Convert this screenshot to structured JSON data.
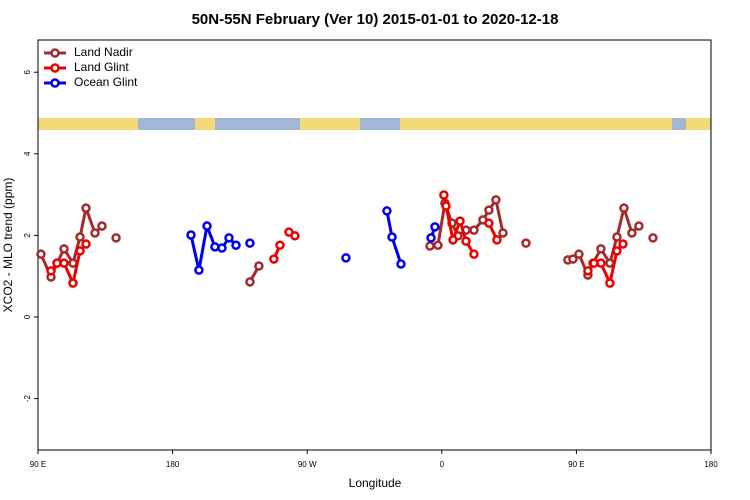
{
  "chart_data": {
    "type": "line",
    "title": "50N-55N February (Ver 10)   2015-01-01 to 2020-12-18",
    "x_label": "Longitude",
    "y_label": "XCO2 - MLO trend (ppm)",
    "xlim": [
      90,
      540
    ],
    "xticks": [
      {
        "value": 90,
        "label": "90 E"
      },
      180,
      {
        "value": 270,
        "label": "90 W"
      },
      {
        "value": 360,
        "label": "0"
      },
      {
        "value": 450,
        "label": "90 E"
      },
      {
        "value": 540,
        "label": "180"
      }
    ],
    "ylim": [
      -3.26,
      6.79
    ],
    "yticks": [
      -2,
      0,
      2,
      4,
      6
    ],
    "legend": "top-left",
    "series": [
      {
        "name": "Land Nadir",
        "color": "#a52a2a",
        "x": [
          92.0,
          98.7,
          102.7,
          107.4,
          113.4,
          118.1,
          122.1,
          128.1,
          132.8,
          null,
          142.2,
          null,
          231.7,
          237.7,
          null,
          352.1,
          357.4,
          362.1,
          366.8,
          370.8,
          376.2,
          381.5,
          387.5,
          391.5,
          396.2,
          400.9,
          null,
          416.3,
          null,
          444.3,
          447.7,
          451.7,
          457.7,
          461.1,
          466.4,
          472.4,
          477.1,
          481.8,
          487.1,
          491.8,
          null,
          501.2
        ],
        "values": [
          1.54,
          0.98,
          1.32,
          1.67,
          1.32,
          1.96,
          2.67,
          2.06,
          2.23,
          null,
          1.94,
          null,
          0.86,
          1.25,
          null,
          1.74,
          1.76,
          2.79,
          2.3,
          1.99,
          2.13,
          2.13,
          2.38,
          2.62,
          2.87,
          2.06,
          null,
          1.81,
          null,
          1.4,
          1.42,
          1.54,
          1.03,
          1.32,
          1.67,
          1.32,
          1.96,
          2.67,
          2.06,
          2.23,
          null,
          1.94
        ]
      },
      {
        "name": "Land Glint",
        "color": "#ee0000",
        "x": [
          98.7,
          102.7,
          107.4,
          113.4,
          118.1,
          122.1,
          null,
          247.7,
          251.8,
          null,
          257.8,
          261.8,
          null,
          361.4,
          362.8,
          367.5,
          372.2,
          376.2,
          381.5,
          null,
          391.5,
          396.9,
          null,
          457.7,
          461.8,
          466.4,
          472.4,
          477.1,
          481.1
        ],
        "values": [
          1.13,
          1.32,
          1.32,
          0.83,
          1.62,
          1.79,
          null,
          1.42,
          1.76,
          null,
          2.08,
          1.99,
          null,
          2.99,
          2.72,
          1.89,
          2.35,
          1.86,
          1.54,
          null,
          2.3,
          1.89,
          null,
          1.13,
          1.32,
          1.32,
          0.83,
          1.62,
          1.79
        ]
      },
      {
        "name": "Ocean Glint",
        "color": "#0000ee",
        "x": [
          192.3,
          197.6,
          203.0,
          208.3,
          213.0,
          217.7,
          222.4,
          null,
          231.7,
          null,
          295.9,
          null,
          323.3,
          326.7,
          332.7,
          null,
          352.8,
          355.4
        ],
        "values": [
          2.01,
          1.15,
          2.23,
          1.72,
          1.69,
          1.94,
          1.76,
          null,
          1.81,
          null,
          1.45,
          null,
          2.6,
          1.96,
          1.3,
          null,
          1.94,
          2.21
        ]
      }
    ]
  }
}
